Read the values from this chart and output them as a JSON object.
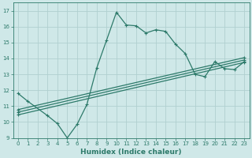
{
  "title": "",
  "xlabel": "Humidex (Indice chaleur)",
  "ylabel": "",
  "bg_color": "#cfe8e8",
  "grid_color": "#b0d0d0",
  "line_color": "#2d7a6a",
  "xlim": [
    -0.5,
    23.5
  ],
  "ylim": [
    9,
    17.5
  ],
  "xticks": [
    0,
    1,
    2,
    3,
    4,
    5,
    6,
    7,
    8,
    9,
    10,
    11,
    12,
    13,
    14,
    15,
    16,
    17,
    18,
    19,
    20,
    21,
    22,
    23
  ],
  "yticks": [
    9,
    10,
    11,
    12,
    13,
    14,
    15,
    16,
    17
  ],
  "curve1_x": [
    0,
    1,
    3,
    4,
    5,
    6,
    7,
    8,
    9,
    10,
    11,
    12,
    13,
    14,
    15,
    16,
    17,
    18,
    19,
    20,
    21,
    22,
    23
  ],
  "curve1_y": [
    11.8,
    11.3,
    10.4,
    9.9,
    9.0,
    9.85,
    11.1,
    13.4,
    15.15,
    16.9,
    16.1,
    16.05,
    15.6,
    15.8,
    15.7,
    14.9,
    14.3,
    13.0,
    12.85,
    13.8,
    13.35,
    13.3,
    13.8
  ],
  "line1_x": [
    0,
    23
  ],
  "line1_y": [
    10.45,
    13.75
  ],
  "line2_x": [
    0,
    23
  ],
  "line2_y": [
    10.62,
    13.9
  ],
  "line3_x": [
    0,
    23
  ],
  "line3_y": [
    10.78,
    14.05
  ]
}
